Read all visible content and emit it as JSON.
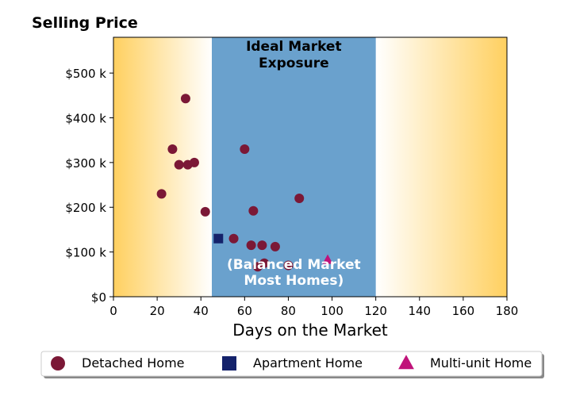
{
  "chart_data": {
    "type": "scatter",
    "title": "",
    "ylabel": "Selling Price",
    "xlabel": "Days on the Market",
    "xlim": [
      0,
      180
    ],
    "ylim": [
      0,
      580000
    ],
    "x_ticks": [
      0,
      20,
      40,
      60,
      80,
      100,
      120,
      140,
      160,
      180
    ],
    "x_tick_labels": [
      "0",
      "20",
      "40",
      "60",
      "80",
      "100",
      "120",
      "140",
      "160",
      "180"
    ],
    "y_ticks": [
      0,
      100000,
      200000,
      300000,
      400000,
      500000
    ],
    "y_tick_labels": [
      "$0",
      "$100 k",
      "$200 k",
      "$300 k",
      "$400 k",
      "$500 k"
    ],
    "grid": false,
    "legend_position": "bottom",
    "highlight_band": {
      "x_range": [
        45,
        120
      ],
      "title_lines": [
        "Ideal Market",
        "Exposure"
      ],
      "note_lines": [
        "(Balanced Market",
        "Most Homes)"
      ],
      "color": "#6aa1cd"
    },
    "background_gradient_color": "#ffd060",
    "series": [
      {
        "name": "Detached Home",
        "marker": "circle",
        "color": "#7b1836",
        "points": [
          [
            22,
            230000
          ],
          [
            27,
            330000
          ],
          [
            30,
            295000
          ],
          [
            33,
            443000
          ],
          [
            34,
            295000
          ],
          [
            37,
            300000
          ],
          [
            42,
            190000
          ],
          [
            55,
            130000
          ],
          [
            60,
            330000
          ],
          [
            63,
            115000
          ],
          [
            64,
            192000
          ],
          [
            66,
            67000
          ],
          [
            68,
            115000
          ],
          [
            69,
            75000
          ],
          [
            74,
            112000
          ],
          [
            80,
            70000
          ],
          [
            85,
            220000
          ]
        ]
      },
      {
        "name": "Apartment Home",
        "marker": "square",
        "color": "#14226b",
        "points": [
          [
            48,
            130000
          ]
        ]
      },
      {
        "name": "Multi-unit Home",
        "marker": "triangle",
        "color": "#c0137a",
        "points": [
          [
            98,
            82000
          ]
        ]
      }
    ]
  }
}
